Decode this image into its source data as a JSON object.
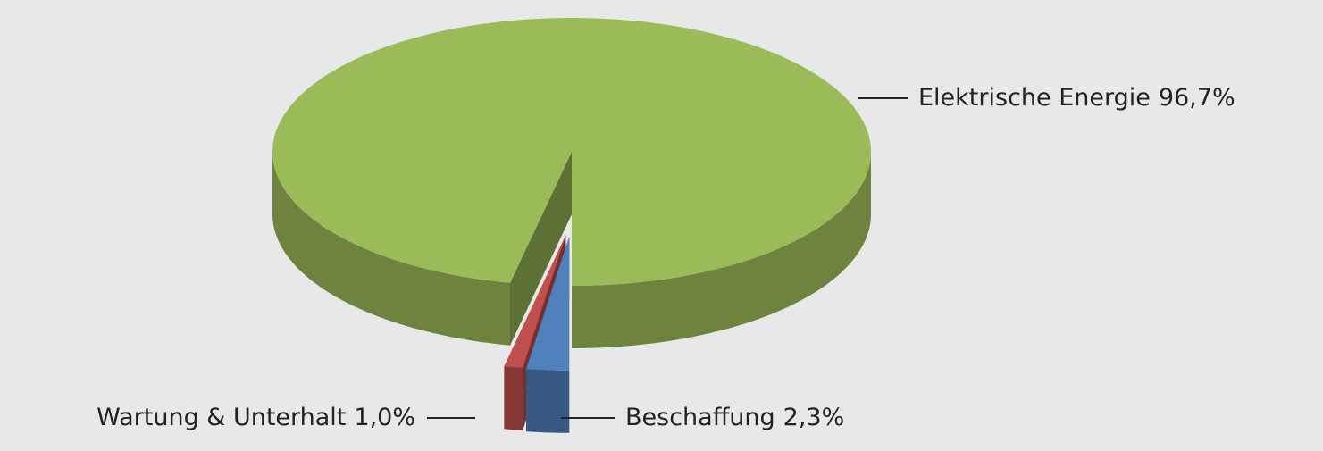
{
  "chart_data": {
    "type": "pie",
    "categories": [
      "Elektrische Energie",
      "Beschaffung",
      "Wartung & Unterhalt"
    ],
    "values": [
      96.7,
      2.3,
      1.0
    ],
    "value_labels": [
      "96,7%",
      "2,3%",
      "1,0%"
    ],
    "colors": [
      "#9bbb59",
      "#4f81bd",
      "#c0504d"
    ]
  }
}
